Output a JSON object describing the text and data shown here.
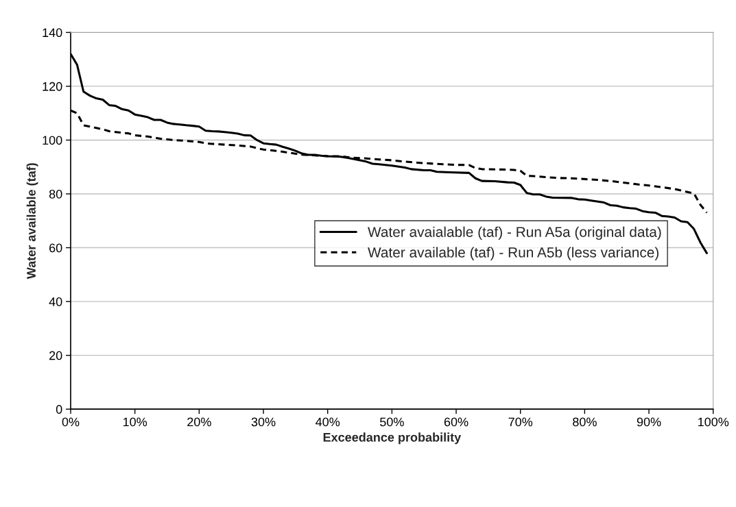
{
  "chart_data": {
    "type": "line",
    "xlabel": "Exceedance probability",
    "ylabel": "Water available (taf)",
    "xlim": [
      0,
      100
    ],
    "ylim": [
      0,
      140
    ],
    "xticks": [
      {
        "value": 0,
        "label": "0%"
      },
      {
        "value": 10,
        "label": "10%"
      },
      {
        "value": 20,
        "label": "20%"
      },
      {
        "value": 30,
        "label": "30%"
      },
      {
        "value": 40,
        "label": "40%"
      },
      {
        "value": 50,
        "label": "50%"
      },
      {
        "value": 60,
        "label": "60%"
      },
      {
        "value": 70,
        "label": "70%"
      },
      {
        "value": 80,
        "label": "80%"
      },
      {
        "value": 90,
        "label": "90%"
      },
      {
        "value": 100,
        "label": "100%"
      }
    ],
    "yticks": [
      0,
      20,
      40,
      60,
      80,
      100,
      120,
      140
    ],
    "grid": "y",
    "legend": "right",
    "marker": "none",
    "series": [
      {
        "name": "Water avaialable (taf) - Run A5a (original data)",
        "color": "#000000",
        "line_style": "solid",
        "x": [
          0,
          1,
          2,
          3,
          4,
          5,
          6,
          7,
          8,
          9,
          10,
          11,
          12,
          13,
          14,
          15,
          16,
          17,
          18,
          19,
          20,
          21,
          22,
          23,
          24,
          25,
          26,
          27,
          28,
          29,
          30,
          31,
          32,
          33,
          34,
          35,
          36,
          37,
          38,
          39,
          40,
          42,
          44,
          46,
          47,
          48,
          50,
          52,
          53,
          55,
          56,
          57,
          59,
          62,
          63,
          64,
          66,
          68,
          69,
          70,
          71,
          72,
          73,
          74,
          75,
          78,
          79,
          80,
          81,
          83,
          84,
          85,
          86,
          87,
          88,
          89,
          90,
          91,
          92,
          93,
          94,
          95,
          96,
          97,
          98,
          99
        ],
        "values": [
          132,
          128,
          118,
          116.5,
          115.5,
          115,
          113,
          112.7,
          111.5,
          111,
          109.5,
          109,
          108.5,
          107.5,
          107.5,
          106.5,
          106,
          105.8,
          105.5,
          105.3,
          105,
          103.5,
          103.3,
          103.2,
          103,
          102.7,
          102.4,
          101.8,
          101.7,
          100,
          98.8,
          98.5,
          98.3,
          97.5,
          96.8,
          96,
          95,
          94.5,
          94.5,
          94.2,
          94,
          93.8,
          93,
          92,
          91.2,
          91,
          90.5,
          89.8,
          89.2,
          88.8,
          88.8,
          88.2,
          88,
          87.8,
          85.8,
          84.8,
          84.7,
          84.3,
          84.2,
          83.3,
          80.3,
          79.8,
          79.8,
          79,
          78.6,
          78.5,
          78,
          77.9,
          77.5,
          76.8,
          75.8,
          75.6,
          75,
          74.7,
          74.5,
          73.6,
          73.2,
          73,
          71.8,
          71.6,
          71.2,
          69.8,
          69.5,
          67,
          62,
          58
        ]
      },
      {
        "name": "Water available (taf) - Run A5b (less variance)",
        "color": "#000000",
        "line_style": "dashed",
        "x": [
          0,
          1,
          2,
          3,
          4,
          5,
          6,
          7,
          8,
          9,
          10,
          12,
          14,
          16,
          18,
          20,
          21,
          22,
          24,
          26,
          28,
          29,
          30,
          32,
          34,
          36,
          38,
          40,
          42,
          44,
          46,
          48,
          50,
          52,
          54,
          56,
          58,
          60,
          62,
          63,
          64,
          66,
          68,
          69,
          70,
          71,
          72,
          74,
          76,
          78,
          80,
          82,
          84,
          86,
          88,
          90,
          92,
          94,
          96,
          97,
          98,
          99
        ],
        "values": [
          111,
          110,
          105.5,
          105,
          104.5,
          104,
          103.3,
          103,
          102.7,
          102.5,
          101.8,
          101.3,
          100.5,
          100,
          99.7,
          99.3,
          98.8,
          98.6,
          98.3,
          98,
          97.6,
          97,
          96.5,
          96,
          95.3,
          94.6,
          94.3,
          94,
          94,
          93.4,
          93.2,
          92.8,
          92.5,
          92,
          91.6,
          91.3,
          91,
          90.8,
          90.7,
          89.6,
          89.2,
          89.1,
          89,
          88.9,
          88.6,
          86.7,
          86.6,
          86.2,
          85.9,
          85.8,
          85.5,
          85.2,
          84.8,
          84.2,
          83.6,
          83.1,
          82.5,
          81.8,
          80.7,
          80.2,
          76,
          73
        ]
      }
    ]
  }
}
